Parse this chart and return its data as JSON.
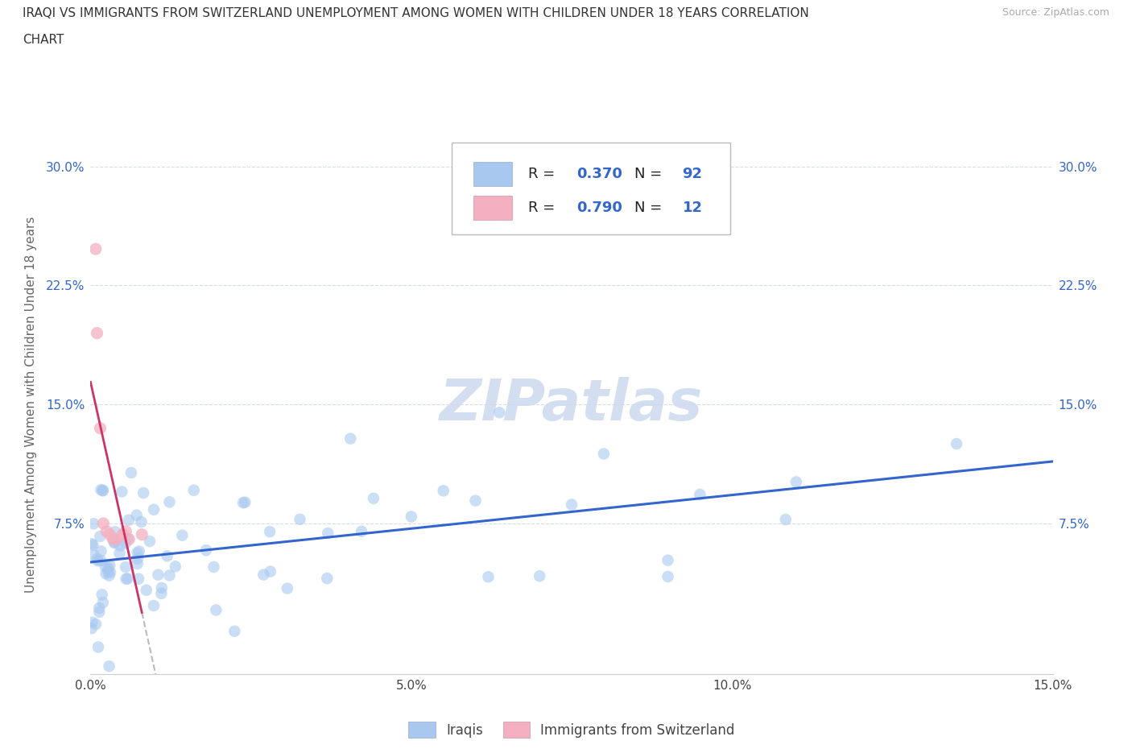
{
  "title_line1": "IRAQI VS IMMIGRANTS FROM SWITZERLAND UNEMPLOYMENT AMONG WOMEN WITH CHILDREN UNDER 18 YEARS CORRELATION",
  "title_line2": "CHART",
  "source_text": "Source: ZipAtlas.com",
  "ylabel": "Unemployment Among Women with Children Under 18 years",
  "xlim": [
    0.0,
    0.15
  ],
  "ylim": [
    -0.02,
    0.32
  ],
  "xtick_vals": [
    0.0,
    0.05,
    0.1,
    0.15
  ],
  "xticklabels": [
    "0.0%",
    "5.0%",
    "10.0%",
    "15.0%"
  ],
  "ytick_vals": [
    0.075,
    0.15,
    0.225,
    0.3
  ],
  "yticklabels": [
    "7.5%",
    "15.0%",
    "22.5%",
    "30.0%"
  ],
  "grid_color": "#d8dce8",
  "background_color": "#ffffff",
  "iraqis_color": "#a8c8f0",
  "swiss_color": "#f4b0c0",
  "iraqis_line_color": "#3366cc",
  "swiss_line_color": "#cc3366",
  "tick_color": "#3366cc",
  "R_iraqis": 0.37,
  "N_iraqis": 92,
  "R_swiss": 0.79,
  "N_swiss": 12,
  "legend_label_iraqis": "Iraqis",
  "legend_label_swiss": "Immigrants from Switzerland",
  "watermark_color": "#ccd9ee",
  "watermark_text": "ZIPatlas"
}
